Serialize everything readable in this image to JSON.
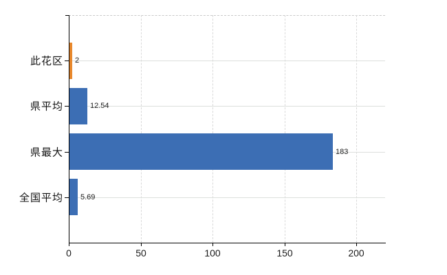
{
  "colors": {
    "background": "#FFFFFF",
    "bar_blue": "#3C6EB4",
    "bar_orange": "#E8882C",
    "gridline": "#D9D9D9",
    "axis": "#000000",
    "text": "#1A1A1A"
  },
  "chart_data": {
    "type": "bar",
    "orientation": "horizontal",
    "title": "",
    "xlabel": "",
    "ylabel": "",
    "categories": [
      "此花区",
      "県平均",
      "県最大",
      "全国平均"
    ],
    "values": [
      2,
      12.54,
      183,
      5.69
    ],
    "value_labels": [
      "2",
      "12.54",
      "183",
      "5.69"
    ],
    "bar_colors": [
      "#E8882C",
      "#3C6EB4",
      "#3C6EB4",
      "#3C6EB4"
    ],
    "xticks": [
      0,
      50,
      100,
      150,
      200
    ],
    "xtick_labels": [
      "0",
      "50",
      "100",
      "150",
      "200"
    ],
    "xlim": [
      0,
      220
    ],
    "grid": true,
    "grid_style": "vertical-dashed-horizontal-solid",
    "top_border": "dashed",
    "legend": false
  }
}
